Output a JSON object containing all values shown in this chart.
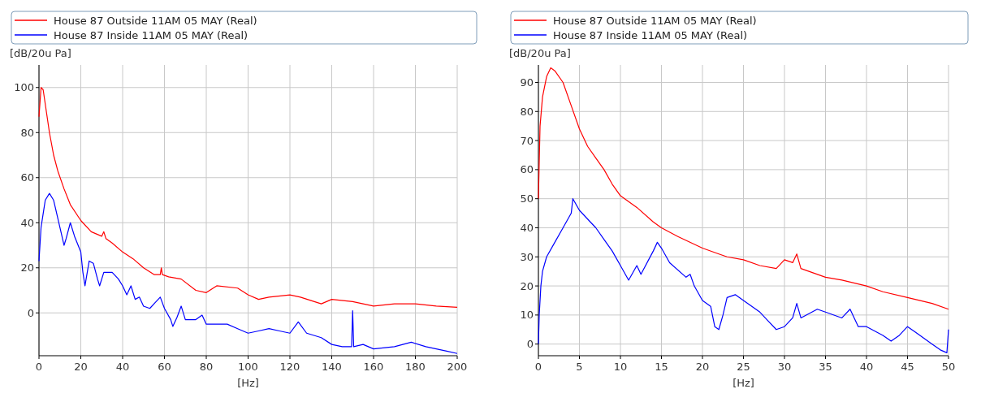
{
  "chart_data": [
    {
      "type": "line",
      "xlabel": "[Hz]",
      "ylabel": "[dB/20u Pa]",
      "xlim": [
        0,
        200
      ],
      "ylim": [
        -19,
        110
      ],
      "xticks": [
        0,
        20,
        40,
        60,
        80,
        100,
        120,
        140,
        160,
        180,
        200
      ],
      "yticks": [
        0,
        20,
        40,
        60,
        80,
        100
      ],
      "grid": true,
      "legend": "top",
      "series": [
        {
          "name": "House 87 Outside 11AM 05 MAY  (Real)",
          "color": "#ff0000",
          "x": [
            0,
            1,
            2,
            5,
            7,
            9,
            12,
            15,
            20,
            25,
            30,
            31,
            32,
            35,
            40,
            45,
            50,
            55,
            58,
            58.5,
            59,
            62,
            68,
            75,
            80,
            85,
            95,
            100,
            105,
            110,
            120,
            125,
            135,
            140,
            150,
            160,
            170,
            180,
            190,
            200
          ],
          "values": [
            87,
            100,
            99,
            80,
            70,
            63,
            55,
            48,
            41,
            36,
            34,
            36,
            33,
            31,
            27,
            24,
            20,
            17,
            17,
            20,
            17,
            16,
            15,
            10,
            9,
            12,
            11,
            8,
            6,
            7,
            8,
            7,
            4,
            6,
            5,
            3,
            4,
            4,
            3,
            2.5
          ]
        },
        {
          "name": "House 87 Inside 11AM 05 MAY (Real)",
          "color": "#0000ff",
          "x": [
            0,
            1,
            3,
            5,
            7,
            10,
            12,
            13,
            15,
            17,
            20,
            21,
            22,
            24,
            26,
            28,
            29,
            31,
            35,
            38,
            40,
            42,
            44,
            46,
            48,
            50,
            53,
            56,
            58,
            60,
            63,
            64,
            66,
            68,
            70,
            75,
            78,
            80,
            90,
            95,
            100,
            105,
            110,
            115,
            120,
            124,
            128,
            135,
            140,
            145,
            149.5,
            150,
            150.5,
            155,
            160,
            170,
            178,
            185,
            195,
            200
          ],
          "values": [
            23,
            38,
            50,
            53,
            50,
            38,
            30,
            33,
            40,
            34,
            27,
            18,
            12,
            23,
            22,
            15,
            12,
            18,
            18,
            15,
            12,
            8,
            12,
            6,
            7,
            3,
            2,
            5,
            7,
            2,
            -3,
            -6,
            -2,
            3,
            -3,
            -3,
            -1,
            -5,
            -5,
            -7,
            -9,
            -8,
            -7,
            -8,
            -9,
            -4,
            -9,
            -11,
            -14,
            -15,
            -15,
            1,
            -15,
            -14,
            -16,
            -15,
            -13,
            -15,
            -17,
            -18
          ]
        }
      ]
    },
    {
      "type": "line",
      "xlabel": "[Hz]",
      "ylabel": "[dB/20u Pa]",
      "xlim": [
        0,
        50
      ],
      "ylim": [
        -4,
        96
      ],
      "xticks": [
        0,
        5,
        10,
        15,
        20,
        25,
        30,
        35,
        40,
        45,
        50
      ],
      "yticks": [
        0,
        10,
        20,
        30,
        40,
        50,
        60,
        70,
        80,
        90
      ],
      "grid": true,
      "legend": "top",
      "series": [
        {
          "name": "House 87 Outside 11AM 05 MAY  (Real)",
          "color": "#ff0000",
          "x": [
            0,
            0.2,
            0.5,
            1,
            1.5,
            2,
            3,
            4,
            5,
            6,
            7,
            8,
            9,
            10,
            12,
            14,
            15,
            17,
            20,
            22,
            23,
            25,
            27,
            29,
            30,
            31,
            31.5,
            32,
            35,
            37,
            40,
            42,
            45,
            48,
            50
          ],
          "values": [
            50,
            75,
            85,
            92,
            95,
            94,
            90,
            82,
            74,
            68,
            64,
            60,
            55,
            51,
            47,
            42,
            40,
            37,
            33,
            31,
            30,
            29,
            27,
            26,
            29,
            28,
            31,
            26,
            23,
            22,
            20,
            18,
            16,
            14,
            12
          ]
        },
        {
          "name": "House 87 Inside 11AM 05 MAY (Real)",
          "color": "#0000ff",
          "x": [
            0,
            0.1,
            0.3,
            0.5,
            1,
            2,
            3,
            4,
            4.2,
            5,
            6,
            7,
            8,
            9,
            10,
            11,
            12,
            12.5,
            14,
            14.5,
            15,
            16,
            18,
            18.5,
            19,
            20,
            21,
            21.5,
            22,
            22.5,
            23,
            24,
            25,
            27,
            28,
            29,
            30,
            31,
            31.5,
            32,
            34,
            35,
            37,
            38,
            39,
            40,
            42,
            43,
            44,
            45,
            46,
            48,
            49,
            49.8,
            50
          ],
          "values": [
            0,
            10,
            20,
            25,
            30,
            35,
            40,
            45,
            50,
            46,
            43,
            40,
            36,
            32,
            27,
            22,
            27,
            24,
            32,
            35,
            33,
            28,
            23,
            24,
            20,
            15,
            13,
            6,
            5,
            10,
            16,
            17,
            15,
            11,
            8,
            5,
            6,
            9,
            14,
            9,
            12,
            11,
            9,
            12,
            6,
            6,
            3,
            1,
            3,
            6,
            4,
            0,
            -2,
            -3,
            5
          ]
        }
      ]
    }
  ]
}
